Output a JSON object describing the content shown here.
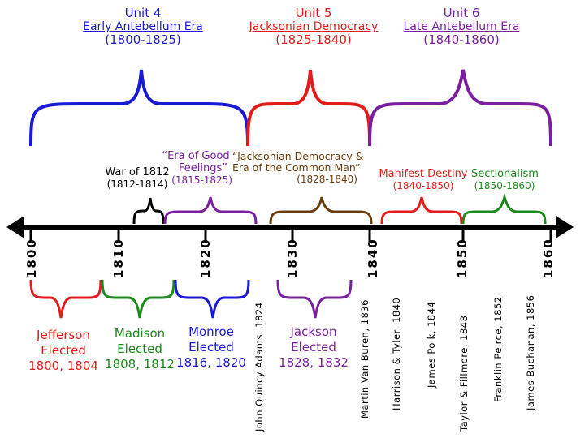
{
  "units": [
    {
      "title": "Unit 4",
      "name": "Early Antebellum Era",
      "range": "(1800-1825)",
      "color": "#1a1ad6"
    },
    {
      "title": "Unit 5",
      "name": "Jacksonian Democracy",
      "range": "(1825-1840)",
      "color": "#e31b1b"
    },
    {
      "title": "Unit 6",
      "name": "Late Antebellum Era",
      "range": "(1840-1860)",
      "color": "#7a1f9e"
    }
  ],
  "eras": {
    "war_1812": {
      "name": "War of 1812",
      "range": "(1812-1814)",
      "color": "#000000"
    },
    "good_feelings": {
      "line1": "“Era of Good",
      "line2": "Feelings”",
      "range": "(1815-1825)",
      "color": "#7a1f9e"
    },
    "jacksonian": {
      "line1": "“Jacksonian Democracy &",
      "line2": "Era of the Common Man”",
      "range": "(1828-1840)",
      "color": "#6b3d0e"
    },
    "manifest": {
      "name": "Manifest Destiny",
      "range": "(1840-1850)",
      "color": "#e31b1b"
    },
    "sectionalism": {
      "name": "Sectionalism",
      "range": "(1850-1860)",
      "color": "#1a8a1a"
    }
  },
  "years": [
    "1800",
    "1810",
    "1820",
    "1830",
    "1840",
    "1850",
    "1860"
  ],
  "presidents": [
    {
      "name": "Jefferson",
      "line2": "Elected",
      "years": "1800, 1804",
      "color": "#e31b1b"
    },
    {
      "name": "Madison",
      "line2": "Elected",
      "years": "1808, 1812",
      "color": "#1a8a1a"
    },
    {
      "name": "Monroe",
      "line2": "Elected",
      "years": "1816, 1820",
      "color": "#1a1ad6"
    },
    {
      "name": "Jackson",
      "line2": "Elected",
      "years": "1828, 1832",
      "color": "#7a1f9e"
    }
  ],
  "vertical_presidents": [
    "John Quincy Adams, 1824",
    "Martin Van Buren, 1836",
    "Harrison & Tyler, 1840",
    "James Polk, 1844",
    "Taylor & Fillmore, 1848",
    "Franklin Peirce, 1852",
    "James Buchanan, 1856"
  ]
}
